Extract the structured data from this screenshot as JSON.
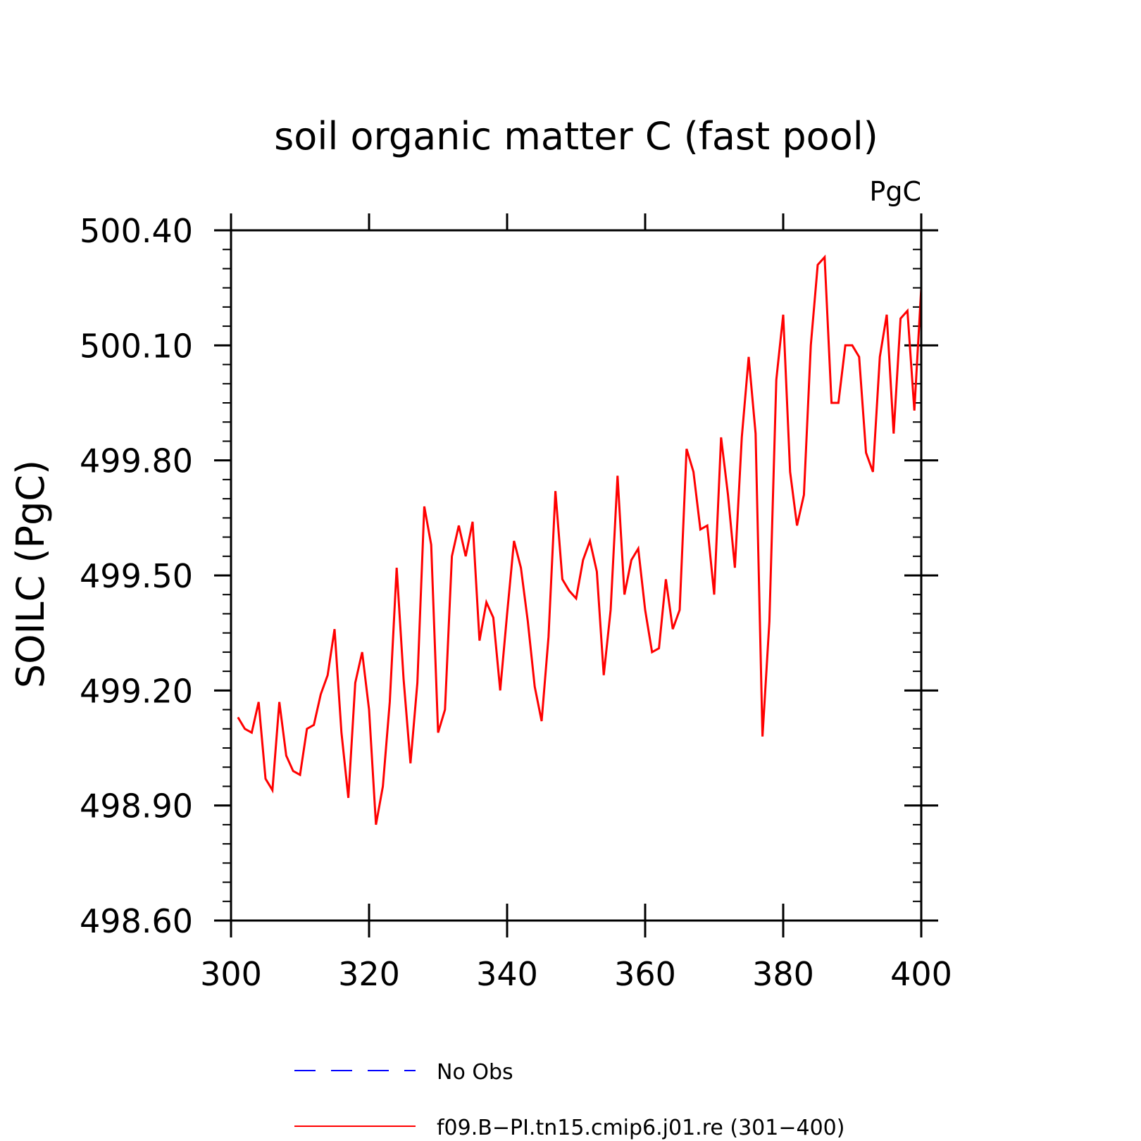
{
  "chart_data": {
    "type": "line",
    "title": "soil organic matter C (fast pool)",
    "units": "PgC",
    "xlabel": "",
    "ylabel": "SOILC  (PgC)",
    "xlim": [
      300,
      400
    ],
    "ylim": [
      498.6,
      500.4
    ],
    "x_ticks": [
      300,
      320,
      340,
      360,
      380,
      400
    ],
    "x_tick_labels": [
      "300",
      "320",
      "340",
      "360",
      "380",
      "400"
    ],
    "y_ticks": [
      498.6,
      498.9,
      499.2,
      499.5,
      499.8,
      500.1,
      500.4
    ],
    "y_tick_labels": [
      "498.60",
      "498.90",
      "499.20",
      "499.50",
      "499.80",
      "500.10",
      "500.40"
    ],
    "grid": false,
    "legend_position": "bottom",
    "legend": [
      {
        "name": "No Obs",
        "color": "#0000ff",
        "style": "dashed"
      },
      {
        "name": "f09.B−PI.tn15.cmip6.j01.re (301−400)",
        "color": "#ff0000",
        "style": "solid"
      }
    ],
    "series": [
      {
        "name": "f09.B−PI.tn15.cmip6.j01.re (301−400)",
        "color": "#ff0000",
        "x_start": 301,
        "x_step": 1,
        "values": [
          499.13,
          499.1,
          499.09,
          499.17,
          498.97,
          498.94,
          499.17,
          499.03,
          498.99,
          498.98,
          499.1,
          499.11,
          499.19,
          499.24,
          499.36,
          499.09,
          498.92,
          499.22,
          499.3,
          499.15,
          498.85,
          498.95,
          499.17,
          499.52,
          499.23,
          499.01,
          499.22,
          499.68,
          499.58,
          499.09,
          499.15,
          499.55,
          499.63,
          499.55,
          499.64,
          499.33,
          499.43,
          499.39,
          499.2,
          499.4,
          499.59,
          499.52,
          499.38,
          499.21,
          499.12,
          499.34,
          499.72,
          499.49,
          499.46,
          499.44,
          499.54,
          499.59,
          499.51,
          499.24,
          499.41,
          499.76,
          499.45,
          499.54,
          499.57,
          499.41,
          499.3,
          499.31,
          499.49,
          499.36,
          499.41,
          499.83,
          499.77,
          499.62,
          499.63,
          499.45,
          499.86,
          499.71,
          499.52,
          499.86,
          500.07,
          499.87,
          499.08,
          499.38,
          500.01,
          500.18,
          499.77,
          499.63,
          499.71,
          500.1,
          500.31,
          500.33,
          499.95,
          499.95,
          500.1,
          500.1,
          500.07,
          499.82,
          499.77,
          500.07,
          500.18,
          499.87,
          500.17,
          500.19,
          499.93,
          500.25
        ]
      }
    ]
  }
}
